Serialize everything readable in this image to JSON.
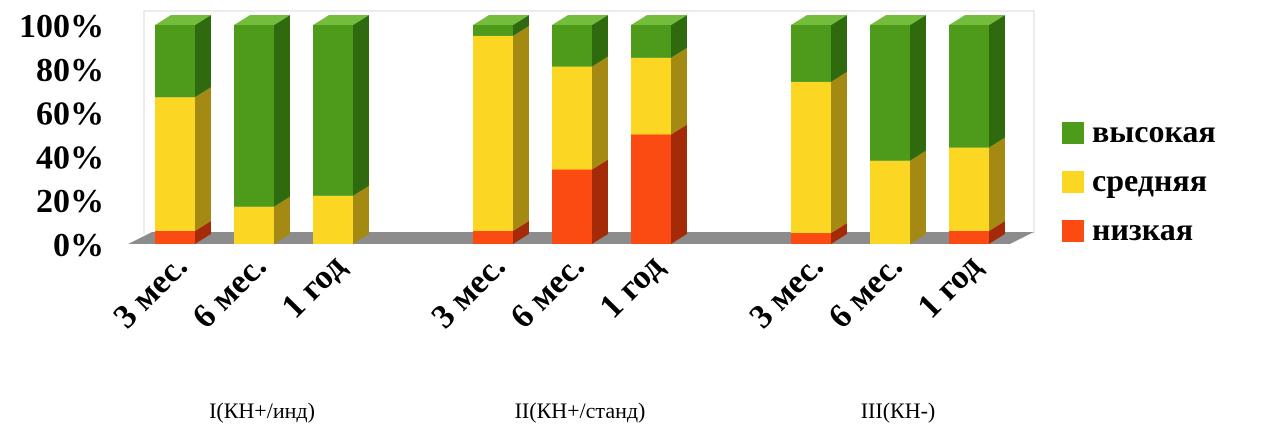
{
  "chart_data": {
    "type": "bar",
    "stacked": true,
    "percent": true,
    "three_d": true,
    "title": "",
    "xlabel": "",
    "ylabel": "",
    "ylim": [
      0,
      100
    ],
    "yticks": [
      "0%",
      "20%",
      "40%",
      "60%",
      "80%",
      "100%"
    ],
    "grid": false,
    "legend_position": "right",
    "groups": [
      {
        "name": "I(КН+/инд)",
        "categories": [
          "3 мес.",
          "6 мес.",
          "1 год"
        ],
        "series": {
          "низкая": [
            6,
            0,
            0
          ],
          "средняя": [
            61,
            17,
            22
          ],
          "высокая": [
            33,
            83,
            78
          ]
        }
      },
      {
        "name": "II(КН+/станд)",
        "categories": [
          "3 мес.",
          "6 мес.",
          "1 год"
        ],
        "series": {
          "низкая": [
            6,
            34,
            50
          ],
          "средняя": [
            89,
            47,
            35
          ],
          "высокая": [
            5,
            19,
            15
          ]
        }
      },
      {
        "name": "III(КН-)",
        "categories": [
          "3 мес.",
          "6 мес.",
          "1 год"
        ],
        "series": {
          "низкая": [
            5,
            0,
            6
          ],
          "средняя": [
            69,
            38,
            38
          ],
          "высокая": [
            26,
            62,
            56
          ]
        }
      }
    ],
    "series_order": [
      "низкая",
      "средняя",
      "высокая"
    ],
    "legend": [
      {
        "name": "высокая",
        "color": "#4e9a1a"
      },
      {
        "name": "средняя",
        "color": "#fbd622"
      },
      {
        "name": "низкая",
        "color": "#fb4a12"
      }
    ],
    "colors": {
      "низкая": {
        "front": "#fb4a12",
        "side": "#a52b08",
        "top": "#fc7a4e"
      },
      "средняя": {
        "front": "#fbd622",
        "side": "#a48a12",
        "top": "#fde574"
      },
      "высокая": {
        "front": "#4e9a1a",
        "side": "#2f6a0e",
        "top": "#74bc3c"
      },
      "floor": "#8c8c8c"
    }
  }
}
